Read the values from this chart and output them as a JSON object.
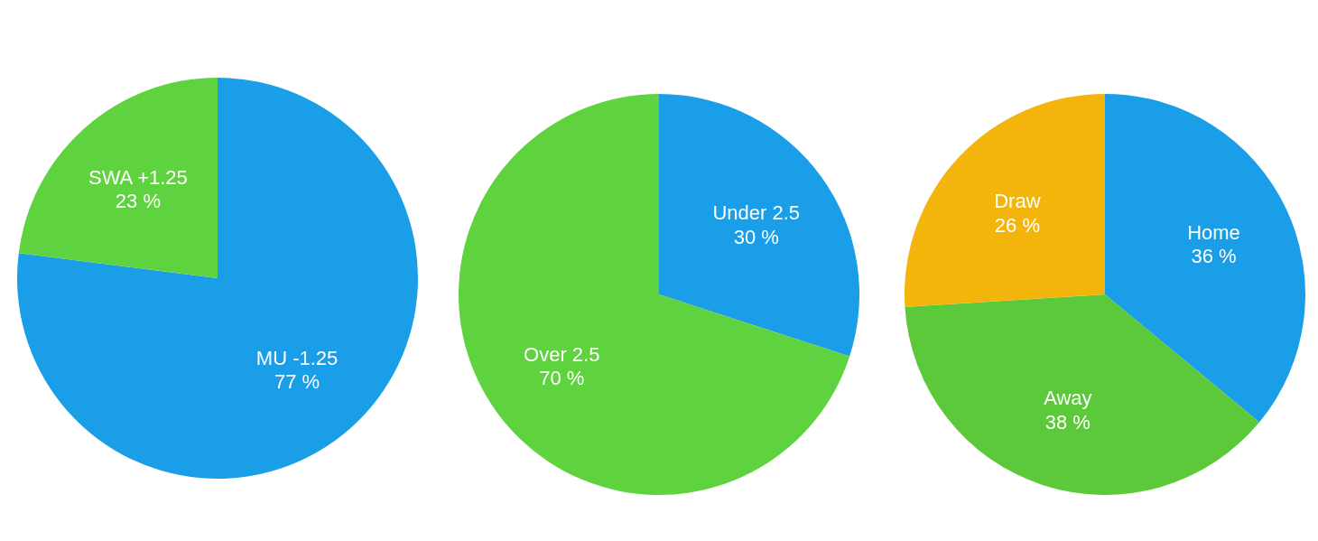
{
  "chart_data": [
    {
      "type": "pie",
      "categories": [
        "MU -1.25",
        "SWA +1.25"
      ],
      "values": [
        77,
        23
      ],
      "colors": [
        "#1a9ee8",
        "#5fd33f"
      ],
      "value_labels": [
        "77 %",
        "23 %"
      ]
    },
    {
      "type": "pie",
      "categories": [
        "Under 2.5",
        "Over 2.5"
      ],
      "values": [
        30,
        70
      ],
      "colors": [
        "#1a9ee8",
        "#5fd33f"
      ],
      "value_labels": [
        "30 %",
        "70 %"
      ]
    },
    {
      "type": "pie",
      "categories": [
        "Home",
        "Away",
        "Draw"
      ],
      "values": [
        36,
        38,
        26
      ],
      "colors": [
        "#1a9ee8",
        "#5cc93a",
        "#f3b40c"
      ],
      "value_labels": [
        "36 %",
        "38 %",
        "26 %"
      ]
    }
  ]
}
